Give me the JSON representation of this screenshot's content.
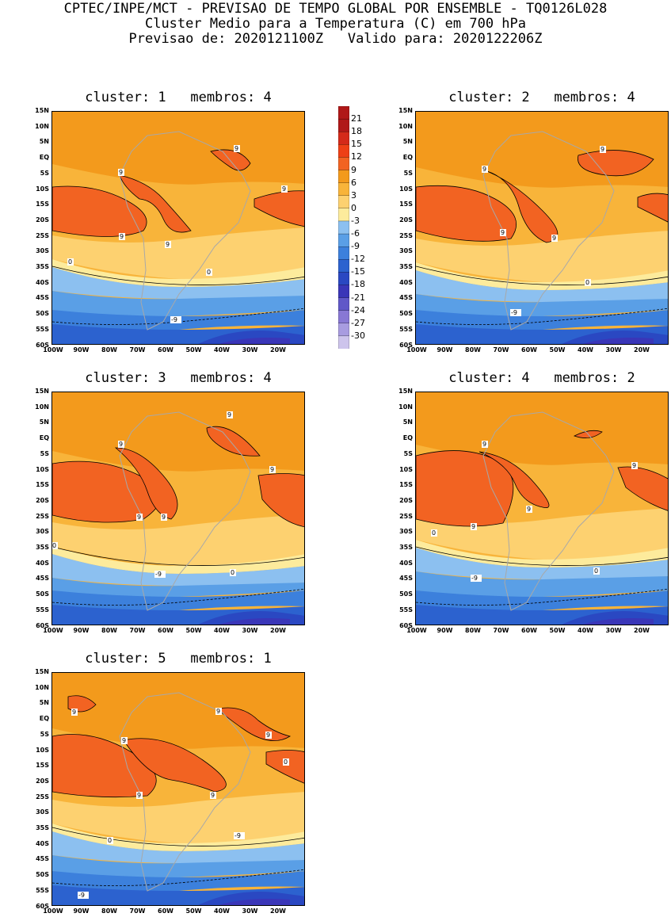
{
  "header": {
    "line1": "CPTEC/INPE/MCT - PREVISAO DE TEMPO GLOBAL POR ENSEMBLE - TQ0126L028",
    "line2": "Cluster Medio para a Temperatura (C) em 700 hPa",
    "line3": "Previsao de: 2020121100Z   Valido para: 2020122206Z"
  },
  "colors": {
    "c21": "#b01818",
    "c18": "#d42a1a",
    "c15": "#ee4016",
    "c12": "#f26322",
    "c9": "#f39a1c",
    "c6": "#f8b43a",
    "c3": "#fdd170",
    "c0": "#fdeb9c",
    "m3": "#8cc0f0",
    "m6": "#5a9fe6",
    "m9": "#3c80dc",
    "m12": "#2c62cf",
    "m15": "#2a48c2",
    "m18": "#3a36b8",
    "m21": "#6058c8",
    "m24": "#8878d4",
    "m27": "#a89ce0",
    "m30": "#cdc4ec",
    "land": "#a8a8a8"
  },
  "colorbar": {
    "labels": [
      "21",
      "18",
      "15",
      "12",
      "9",
      "6",
      "3",
      "0",
      "-3",
      "-6",
      "-9",
      "-12",
      "-15",
      "-18",
      "-21",
      "-24",
      "-27",
      "-30"
    ]
  },
  "axes": {
    "lat_labels": [
      "15N",
      "10N",
      "5N",
      "EQ",
      "5S",
      "10S",
      "15S",
      "20S",
      "25S",
      "30S",
      "35S",
      "40S",
      "45S",
      "50S",
      "55S",
      "60S"
    ],
    "lon_labels": [
      "100W",
      "90W",
      "80W",
      "70W",
      "60W",
      "50W",
      "40W",
      "30W",
      "20W"
    ]
  },
  "panels": [
    {
      "title": "cluster: 1   membros: 4",
      "labels": [
        "9",
        "9",
        "9",
        "9",
        "9",
        "0",
        "0",
        "-9"
      ]
    },
    {
      "title": "cluster: 2   membros: 4",
      "labels": [
        "9",
        "9",
        "9",
        "9",
        "0",
        "-9"
      ]
    },
    {
      "title": "cluster: 3   membros: 4",
      "labels": [
        "9",
        "9",
        "9",
        "9",
        "9",
        "0",
        "0",
        "-9"
      ]
    },
    {
      "title": "cluster: 4   membros: 2",
      "labels": [
        "9",
        "9",
        "9",
        "9",
        "0",
        "0",
        "-9"
      ]
    },
    {
      "title": "cluster: 5   membros: 1",
      "labels": [
        "9",
        "9",
        "9",
        "9",
        "9",
        "9",
        "0",
        "0",
        "-9",
        "-9"
      ]
    }
  ]
}
